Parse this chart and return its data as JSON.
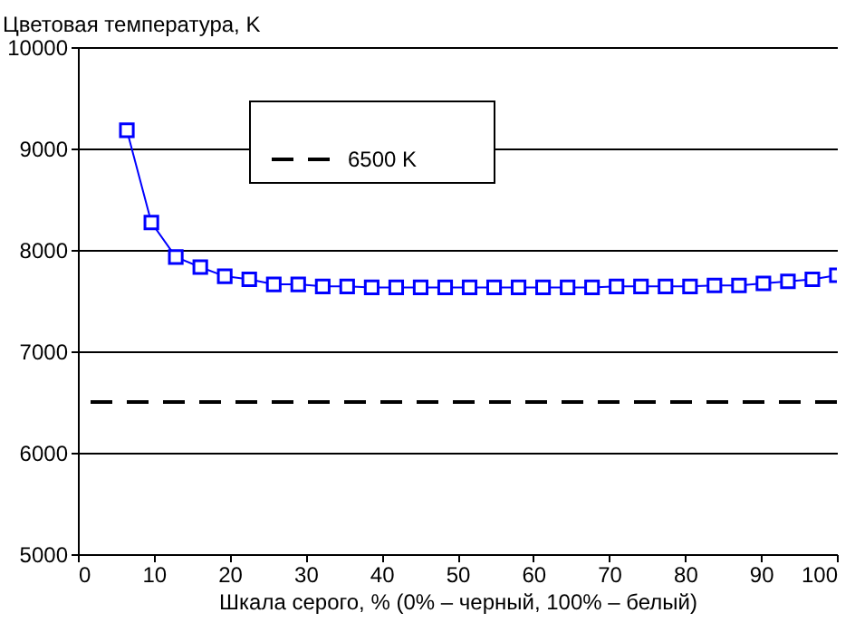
{
  "chart_data": {
    "type": "line",
    "xlabel": "Шкала серого, % (0% – черный, 100% – белый)",
    "ylabel": "Цветовая температура, K",
    "x": [
      6.45,
      9.68,
      12.9,
      16.13,
      19.35,
      22.58,
      25.81,
      29.03,
      32.26,
      35.48,
      38.71,
      41.94,
      45.16,
      48.39,
      51.61,
      54.84,
      58.06,
      61.29,
      64.52,
      67.74,
      70.97,
      74.19,
      77.42,
      80.65,
      83.87,
      87.1,
      90.32,
      93.55,
      96.77,
      100
    ],
    "series": [
      {
        "color": "#0000ff",
        "values": [
          9180,
          8270,
          7930,
          7830,
          7740,
          7710,
          7660,
          7660,
          7640,
          7640,
          7630,
          7630,
          7630,
          7630,
          7630,
          7630,
          7630,
          7630,
          7630,
          7630,
          7640,
          7640,
          7640,
          7640,
          7650,
          7650,
          7670,
          7690,
          7710,
          7750
        ]
      }
    ],
    "ref_lines": [
      {
        "axis": "y",
        "value": 6500,
        "label": "6500 K",
        "color": "#000000",
        "line_style": "dashed"
      }
    ],
    "xlim": [
      0,
      100
    ],
    "xticks": [
      0,
      10,
      20,
      30,
      40,
      50,
      60,
      70,
      80,
      90,
      100
    ],
    "ylim": [
      5000,
      10000
    ],
    "yticks": [
      5000,
      6000,
      7000,
      8000,
      9000,
      10000
    ],
    "grid": "y",
    "legend": "top",
    "marker": "square",
    "line_style": "solid"
  }
}
